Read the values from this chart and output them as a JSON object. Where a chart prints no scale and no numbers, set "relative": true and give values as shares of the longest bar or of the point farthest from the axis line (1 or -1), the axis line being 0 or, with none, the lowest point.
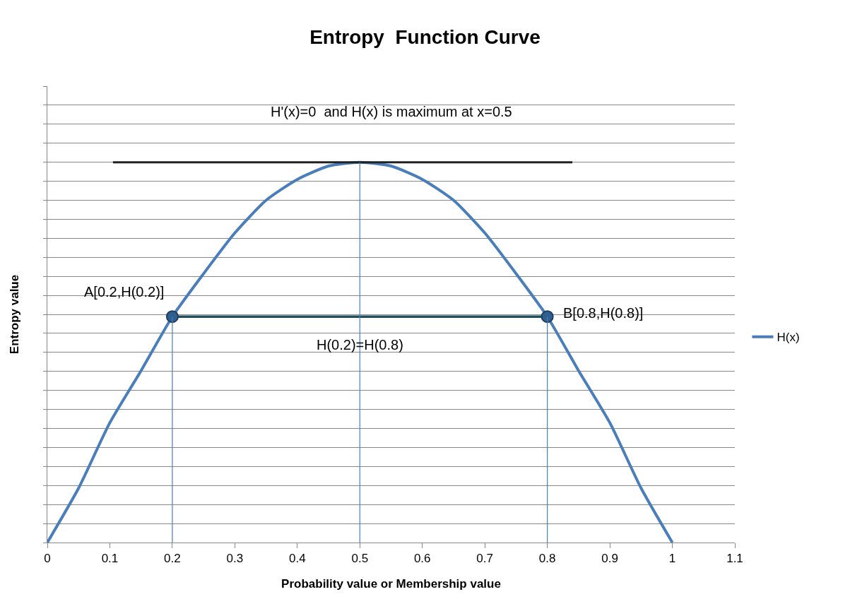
{
  "chart_data": {
    "type": "line",
    "title": "Entropy  Function Curve",
    "xlabel": "Probability value or Membership value",
    "ylabel": "Entropy value",
    "relative": true,
    "xlim": [
      0,
      1.1
    ],
    "xticks": [
      0,
      0.1,
      0.2,
      0.3,
      0.4,
      0.5,
      0.6,
      0.7,
      0.8,
      0.9,
      1,
      1.1
    ],
    "grid": "y",
    "legend": "right",
    "series": [
      {
        "name": "H(x)",
        "color": "#4a7ebb",
        "marker": "none",
        "line_style": "solid",
        "x": [
          0,
          0.05,
          0.1,
          0.15,
          0.2,
          0.25,
          0.3,
          0.35,
          0.4,
          0.45,
          0.5,
          0.55,
          0.6,
          0.65,
          0.7,
          0.75,
          0.8,
          0.85,
          0.9,
          0.95,
          1
        ],
        "values": [
          0,
          0.143,
          0.315,
          0.452,
          0.594,
          0.707,
          0.814,
          0.9,
          0.955,
          0.99,
          1,
          0.99,
          0.955,
          0.9,
          0.814,
          0.707,
          0.594,
          0.452,
          0.315,
          0.143,
          0
        ]
      },
      {
        "color": "#222222",
        "marker": "none",
        "line_style": "solid",
        "x": [
          0.105,
          0.84
        ],
        "values": [
          1,
          1
        ]
      },
      {
        "color": "#1f4e5f",
        "marker": "circle",
        "line_style": "solid",
        "x": [
          0.2,
          0.8
        ],
        "values": [
          0.594,
          0.594
        ]
      },
      {
        "color": "#4a7ebb",
        "marker": "none",
        "line_style": "solid",
        "x": [
          0.2,
          0.2
        ],
        "values": [
          0,
          0.594
        ]
      },
      {
        "color": "#4a7ebb",
        "marker": "none",
        "line_style": "solid",
        "x": [
          0.5,
          0.5
        ],
        "values": [
          0,
          1
        ]
      },
      {
        "color": "#4a7ebb",
        "marker": "none",
        "line_style": "solid",
        "x": [
          0.8,
          0.8
        ],
        "values": [
          0,
          0.594
        ]
      }
    ],
    "annotations": [
      "H'(x)=0  and H(x) is maximum at x=0.5",
      {
        "text": "A[0.2,H(0.2)]",
        "x": 0.2,
        "y": 0.594
      },
      {
        "text": "B[0.8,H(0.8)]",
        "x": 0.8,
        "y": 0.594
      },
      {
        "text": "H(0.2)=H(0.8)",
        "x": 0.5,
        "y": 0.594
      }
    ]
  }
}
